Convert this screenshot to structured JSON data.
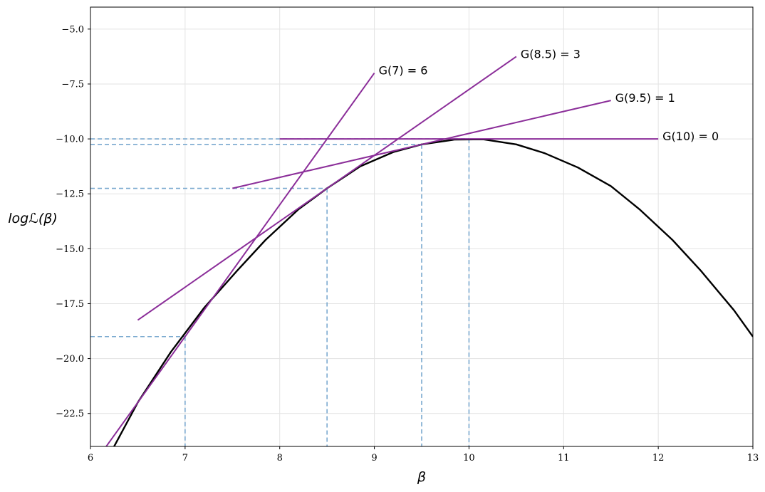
{
  "chart_data": {
    "type": "line",
    "xlabel": "β",
    "ylabel": "logℒ(β)",
    "xlim": [
      6,
      13
    ],
    "ylim": [
      -24,
      -4
    ],
    "xticks": [
      "6",
      "7",
      "8",
      "9",
      "10",
      "11",
      "12",
      "13"
    ],
    "yticks": [
      "−5.0",
      "−7.5",
      "−10.0",
      "−12.5",
      "−15.0",
      "−17.5",
      "−20.0",
      "−22.5"
    ],
    "grid": true,
    "colors": {
      "curve": "#000000",
      "tangent": "#8b2e99",
      "guide": "#7aa9cf"
    },
    "curve": {
      "x": [
        6.2,
        6.5,
        6.85,
        7.2,
        7.55,
        7.85,
        8.2,
        8.5,
        8.85,
        9.2,
        9.5,
        9.85,
        10.15,
        10.5,
        10.8,
        11.15,
        11.5,
        11.8,
        12.15,
        12.45,
        12.8,
        13.0
      ],
      "y": [
        -24.4,
        -22.0,
        -19.7,
        -17.7,
        -16.0,
        -14.6,
        -13.2,
        -12.25,
        -11.25,
        -10.6,
        -10.25,
        -10.03,
        -10.02,
        -10.25,
        -10.65,
        -11.3,
        -12.15,
        -13.2,
        -14.6,
        -16.0,
        -17.8,
        -19.0
      ]
    },
    "tangents": [
      {
        "label": "G(7) = 6",
        "x": [
          6.0,
          9.0
        ],
        "y": [
          -25.0,
          -7.0
        ]
      },
      {
        "label": "G(8.5) = 3",
        "x": [
          6.5,
          10.5
        ],
        "y": [
          -18.25,
          -6.25
        ]
      },
      {
        "label": "G(9.5) = 1",
        "x": [
          7.5,
          11.5
        ],
        "y": [
          -12.25,
          -8.25
        ]
      },
      {
        "label": "G(10) = 0",
        "x": [
          8.0,
          12.0
        ],
        "y": [
          -10.0,
          -10.0
        ]
      }
    ],
    "guides": [
      {
        "x": 7.0,
        "y": -19.0
      },
      {
        "x": 8.5,
        "y": -12.25
      },
      {
        "x": 9.5,
        "y": -10.25
      },
      {
        "x": 10.0,
        "y": -10.0
      }
    ]
  }
}
